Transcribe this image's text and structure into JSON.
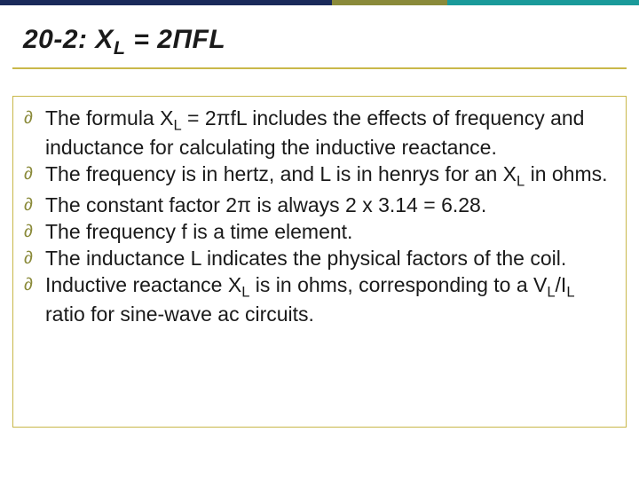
{
  "colors": {
    "border_navy": "#1a2a5a",
    "border_olive": "#8a8a3a",
    "border_teal": "#1a9a9a",
    "rule_gold": "#c9b84a",
    "text": "#1a1a1a",
    "bullet": "#8a8a3a",
    "background": "#ffffff"
  },
  "typography": {
    "title_fontsize": 30,
    "body_fontsize": 23,
    "font_family": "Arial"
  },
  "title": {
    "prefix": "20-2: ",
    "var": "X",
    "sub": "L",
    "rest": " = 2ΠFL"
  },
  "bullets": [
    {
      "html": "The formula X<span class=\"sub\">L</span> = 2πfL includes the effects of frequency and inductance for calculating the inductive reactance."
    },
    {
      "html": "The frequency is in hertz, and L is in henrys for an X<span class=\"sub\">L</span> in ohms."
    },
    {
      "html": "The constant factor 2π is always 2 x 3.14 = 6.28."
    },
    {
      "html": "The frequency f is a time element."
    },
    {
      "html": "The inductance L indicates the physical factors of the coil."
    },
    {
      "html": "Inductive reactance X<span class=\"sub\">L</span> is in ohms, corresponding to a V<span class=\"sub\">L</span>/I<span class=\"sub\">L</span> ratio for sine-wave ac circuits."
    }
  ]
}
